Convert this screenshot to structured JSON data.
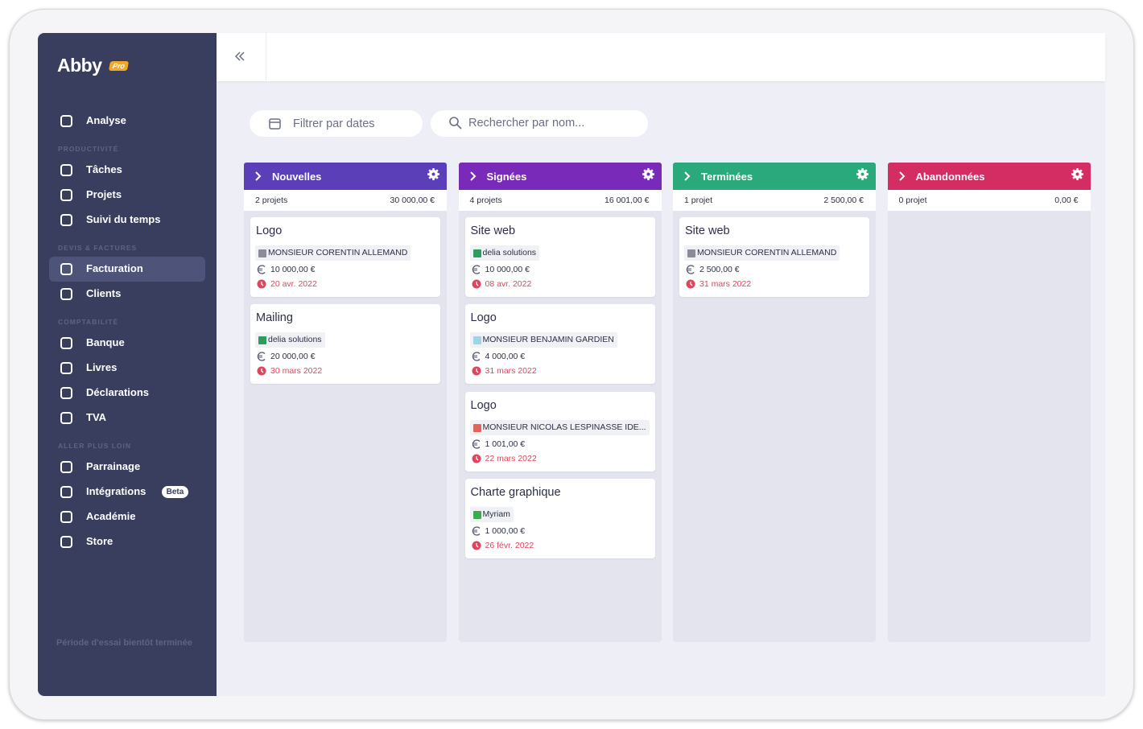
{
  "sidebar": {
    "logo": "Abby",
    "logo_badge": "Pro",
    "top_items": [
      {
        "label": "Analyse"
      }
    ],
    "groups": [
      {
        "label": "PRODUCTIVITÉ",
        "items": [
          {
            "label": "Tâches"
          },
          {
            "label": "Projets"
          },
          {
            "label": "Suivi du temps"
          }
        ]
      },
      {
        "label": "DEVIS & FACTURES",
        "items": [
          {
            "label": "Facturation",
            "active": true
          },
          {
            "label": "Clients"
          }
        ]
      },
      {
        "label": "COMPTABILITÉ",
        "items": [
          {
            "label": "Banque"
          },
          {
            "label": "Livres"
          },
          {
            "label": "Déclarations"
          },
          {
            "label": "TVA"
          }
        ]
      },
      {
        "label": "ALLER PLUS LOIN",
        "items": [
          {
            "label": "Parrainage"
          },
          {
            "label": "Intégrations",
            "badge": "Beta"
          },
          {
            "label": "Académie"
          },
          {
            "label": "Store"
          }
        ]
      }
    ],
    "footer": "Période d'essai bientôt terminée"
  },
  "toolbar": {
    "date_filter": "Filtrer par dates",
    "search": "Rechercher par nom..."
  },
  "columns": [
    {
      "title": "Nouvelles",
      "color": "#5b3fb8",
      "count": "2 projets",
      "total": "30 000,00 €",
      "cards": [
        {
          "title": "Logo",
          "client": "MONSIEUR CORENTIN ALLEMAND",
          "client_color": "#8a8d99",
          "amount": "10 000,00 €",
          "date": "20 avr. 2022"
        },
        {
          "title": "Mailing",
          "client": "delia solutions",
          "client_color": "#2e9c5f",
          "amount": "20 000,00 €",
          "date": "30 mars 2022"
        }
      ]
    },
    {
      "title": "Signées",
      "color": "#7a2ab8",
      "count": "4 projets",
      "total": "16 001,00 €",
      "cards": [
        {
          "title": "Site web",
          "client": "delia solutions",
          "client_color": "#2e9c5f",
          "amount": "10 000,00 €",
          "date": "08 avr. 2022"
        },
        {
          "title": "Logo",
          "client": "MONSIEUR BENJAMIN GARDIEN",
          "client_color": "#9fd3e8",
          "amount": "4 000,00 €",
          "date": "31 mars 2022"
        },
        {
          "title": "Logo",
          "client": "MONSIEUR NICOLAS LESPINASSE IDE...",
          "client_color": "#e0645c",
          "amount": "1 001,00 €",
          "date": "22 mars 2022"
        },
        {
          "title": "Charte graphique",
          "client": "Myriam",
          "client_color": "#3aaa4a",
          "amount": "1 000,00 €",
          "date": "26 févr. 2022"
        }
      ]
    },
    {
      "title": "Terminées",
      "color": "#2aa97c",
      "count": "1 projet",
      "total": "2 500,00 €",
      "cards": [
        {
          "title": "Site web",
          "client": "MONSIEUR CORENTIN ALLEMAND",
          "client_color": "#8a8d99",
          "amount": "2 500,00 €",
          "date": "31 mars 2022"
        }
      ]
    },
    {
      "title": "Abandonnées",
      "color": "#d42d63",
      "count": "0 projet",
      "total": "0,00 €",
      "cards": []
    }
  ]
}
